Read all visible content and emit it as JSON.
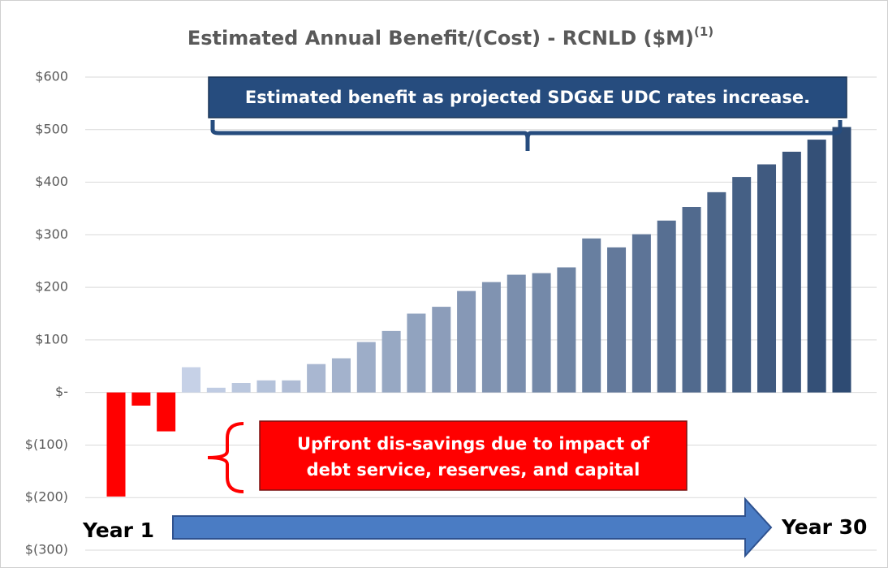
{
  "chart_data": {
    "type": "bar",
    "title": "Estimated Annual Benefit/(Cost) - RCNLD ($M)",
    "title_note": "(1)",
    "values": [
      -198,
      -25,
      -74,
      48,
      9,
      18,
      23,
      23,
      54,
      65,
      96,
      117,
      150,
      163,
      193,
      210,
      224,
      227,
      238,
      293,
      276,
      301,
      327,
      353,
      381,
      410,
      434,
      458,
      481,
      505
    ],
    "color_start": "#c6d1e7",
    "color_end": "#2e4b73",
    "negative_color": "#ff0000",
    "ylim": [
      -300,
      600
    ],
    "yticks": [
      {
        "value": -300,
        "label": "$(300)"
      },
      {
        "value": -200,
        "label": "$(200)"
      },
      {
        "value": -100,
        "label": "$(100)"
      },
      {
        "value": 0,
        "label": "$-"
      },
      {
        "value": 100,
        "label": "$100"
      },
      {
        "value": 200,
        "label": "$200"
      },
      {
        "value": 300,
        "label": "$300"
      },
      {
        "value": 400,
        "label": "$400"
      },
      {
        "value": 500,
        "label": "$500"
      },
      {
        "value": 600,
        "label": "$600"
      }
    ],
    "grid": true,
    "annotations": {
      "benefit": "Estimated benefit as projected SDG&E UDC rates increase.",
      "dissavings": [
        "Upfront dis-savings due to impact of",
        "debt service, reserves, and capital"
      ],
      "start": "Year 1",
      "end": "Year 30"
    }
  }
}
